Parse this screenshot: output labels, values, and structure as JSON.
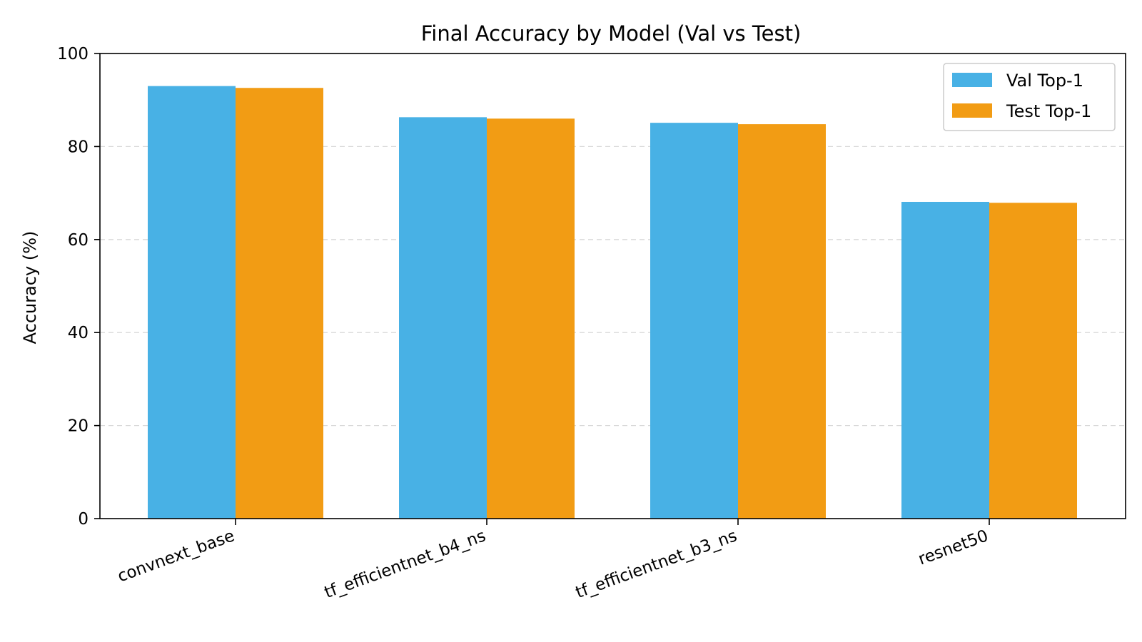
{
  "colors": {
    "val": "#48B1E5",
    "test": "#F29C14",
    "grid": "#d9d9d9",
    "axis": "#000000"
  },
  "chart_data": {
    "type": "bar",
    "title": "Final Accuracy by Model (Val vs Test)",
    "xlabel": "",
    "ylabel": "Accuracy (%)",
    "ylim": [
      0,
      100
    ],
    "yticks": [
      0,
      20,
      40,
      60,
      80,
      100
    ],
    "grid": "horizontal-dashed",
    "legend_position": "top-right",
    "categories": [
      "convnext_base",
      "tf_efficientnet_b4_ns",
      "tf_efficientnet_b3_ns",
      "resnet50"
    ],
    "series": [
      {
        "name": "Val Top-1",
        "color": "#48B1E5",
        "values": [
          93.0,
          86.3,
          85.1,
          68.1
        ]
      },
      {
        "name": "Test Top-1",
        "color": "#F29C14",
        "values": [
          92.6,
          86.0,
          84.8,
          67.9
        ]
      }
    ]
  }
}
